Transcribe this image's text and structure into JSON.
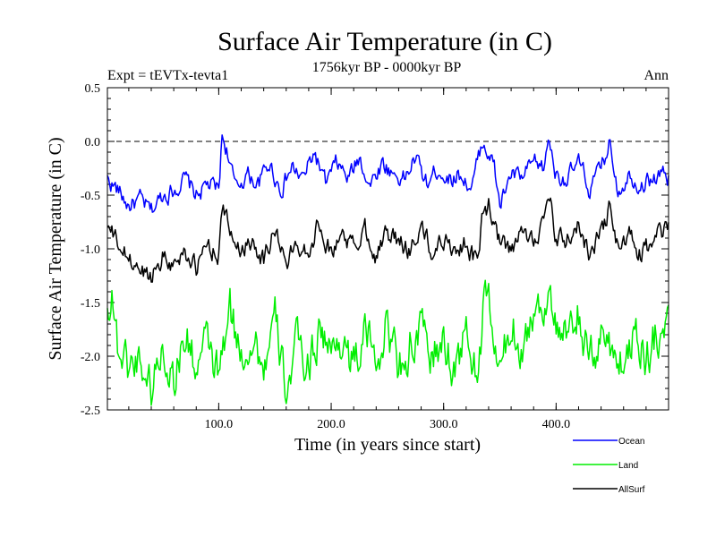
{
  "chart_data": {
    "type": "line",
    "title": "Surface Air Temperature (in C)",
    "subtitle": "1756kyr BP - 0000kyr BP",
    "left_note": "Expt = tEVTx-tevta1",
    "right_note": "Ann",
    "xlabel": "Time (in years since start)",
    "ylabel": "Surface Air Temperature (in C)",
    "xlim": [
      1,
      500
    ],
    "ylim": [
      -2.5,
      0.5
    ],
    "xticks": [
      100,
      200,
      300,
      400
    ],
    "xtick_labels": [
      "100.0",
      "200.0",
      "300.0",
      "400.0"
    ],
    "yticks": [
      -2.5,
      -2.0,
      -1.5,
      -1.0,
      -0.5,
      0.0,
      0.5
    ],
    "ytick_labels": [
      "-2.5",
      "-2.0",
      "-1.5",
      "-1.0",
      "-0.5",
      "0.0",
      "0.5"
    ],
    "reference_line": 0.0,
    "legend_position": "bottom-right",
    "series": [
      {
        "name": "Ocean",
        "color": "#0000ff",
        "x": [
          1,
          10,
          20,
          30,
          40,
          50,
          60,
          70,
          80,
          90,
          100,
          103,
          108,
          115,
          125,
          135,
          145,
          155,
          165,
          175,
          185,
          195,
          205,
          215,
          225,
          235,
          245,
          255,
          265,
          275,
          285,
          295,
          305,
          315,
          325,
          333,
          336,
          345,
          350,
          360,
          370,
          380,
          390,
          393,
          400,
          410,
          420,
          430,
          440,
          448,
          455,
          465,
          475,
          485,
          495,
          500
        ],
        "values": [
          -0.35,
          -0.45,
          -0.6,
          -0.55,
          -0.65,
          -0.5,
          -0.45,
          -0.35,
          -0.5,
          -0.4,
          -0.45,
          0.05,
          -0.1,
          -0.45,
          -0.3,
          -0.4,
          -0.2,
          -0.45,
          -0.25,
          -0.35,
          -0.1,
          -0.4,
          -0.2,
          -0.35,
          -0.15,
          -0.4,
          -0.2,
          -0.3,
          -0.35,
          -0.15,
          -0.4,
          -0.25,
          -0.35,
          -0.3,
          -0.45,
          -0.05,
          0.0,
          -0.25,
          -0.6,
          -0.3,
          -0.35,
          -0.2,
          -0.25,
          0.05,
          -0.3,
          -0.35,
          -0.2,
          -0.45,
          -0.25,
          0.0,
          -0.45,
          -0.3,
          -0.4,
          -0.35,
          -0.3,
          -0.35
        ]
      },
      {
        "name": "Land",
        "color": "#00ee00",
        "x": [
          1,
          5,
          10,
          20,
          30,
          40,
          50,
          60,
          70,
          80,
          90,
          100,
          110,
          120,
          130,
          140,
          150,
          160,
          170,
          180,
          190,
          200,
          210,
          220,
          230,
          240,
          250,
          260,
          270,
          280,
          290,
          300,
          310,
          320,
          330,
          335,
          340,
          350,
          360,
          370,
          380,
          390,
          395,
          400,
          410,
          420,
          430,
          440,
          450,
          460,
          470,
          480,
          490,
          500
        ],
        "values": [
          -1.6,
          -1.35,
          -1.9,
          -2.1,
          -2.0,
          -2.3,
          -1.9,
          -2.2,
          -1.8,
          -2.1,
          -1.9,
          -2.2,
          -1.6,
          -2.0,
          -1.8,
          -2.1,
          -1.7,
          -2.3,
          -1.9,
          -2.1,
          -1.7,
          -2.0,
          -1.8,
          -2.1,
          -1.8,
          -2.0,
          -1.7,
          -2.1,
          -1.9,
          -1.8,
          -2.0,
          -1.9,
          -2.1,
          -1.8,
          -2.2,
          -1.6,
          -1.5,
          -2.2,
          -1.7,
          -1.9,
          -1.6,
          -1.5,
          -1.3,
          -1.8,
          -1.9,
          -1.6,
          -2.1,
          -1.8,
          -1.9,
          -2.1,
          -1.7,
          -2.0,
          -1.8,
          -1.55
        ]
      },
      {
        "name": "AllSurf",
        "color": "#000000",
        "x": [
          1,
          10,
          20,
          30,
          40,
          50,
          60,
          70,
          80,
          90,
          100,
          103,
          110,
          120,
          130,
          140,
          150,
          160,
          170,
          180,
          190,
          200,
          210,
          220,
          230,
          240,
          250,
          260,
          270,
          280,
          290,
          300,
          310,
          320,
          330,
          335,
          340,
          350,
          360,
          370,
          380,
          390,
          395,
          400,
          410,
          420,
          430,
          440,
          448,
          455,
          465,
          475,
          485,
          495,
          500
        ],
        "values": [
          -0.8,
          -0.95,
          -1.1,
          -1.2,
          -1.25,
          -1.05,
          -1.15,
          -1.0,
          -1.2,
          -0.95,
          -1.05,
          -0.6,
          -0.85,
          -1.0,
          -0.9,
          -1.1,
          -0.8,
          -1.15,
          -0.95,
          -1.0,
          -0.75,
          -1.05,
          -0.85,
          -1.0,
          -0.8,
          -1.05,
          -0.85,
          -0.95,
          -1.0,
          -0.8,
          -1.05,
          -0.9,
          -1.0,
          -0.95,
          -1.15,
          -0.65,
          -0.6,
          -0.95,
          -1.05,
          -0.85,
          -0.9,
          -0.7,
          -0.6,
          -0.95,
          -0.9,
          -0.8,
          -1.05,
          -0.85,
          -0.6,
          -1.0,
          -0.9,
          -1.05,
          -0.95,
          -0.85,
          -0.75
        ]
      }
    ]
  }
}
